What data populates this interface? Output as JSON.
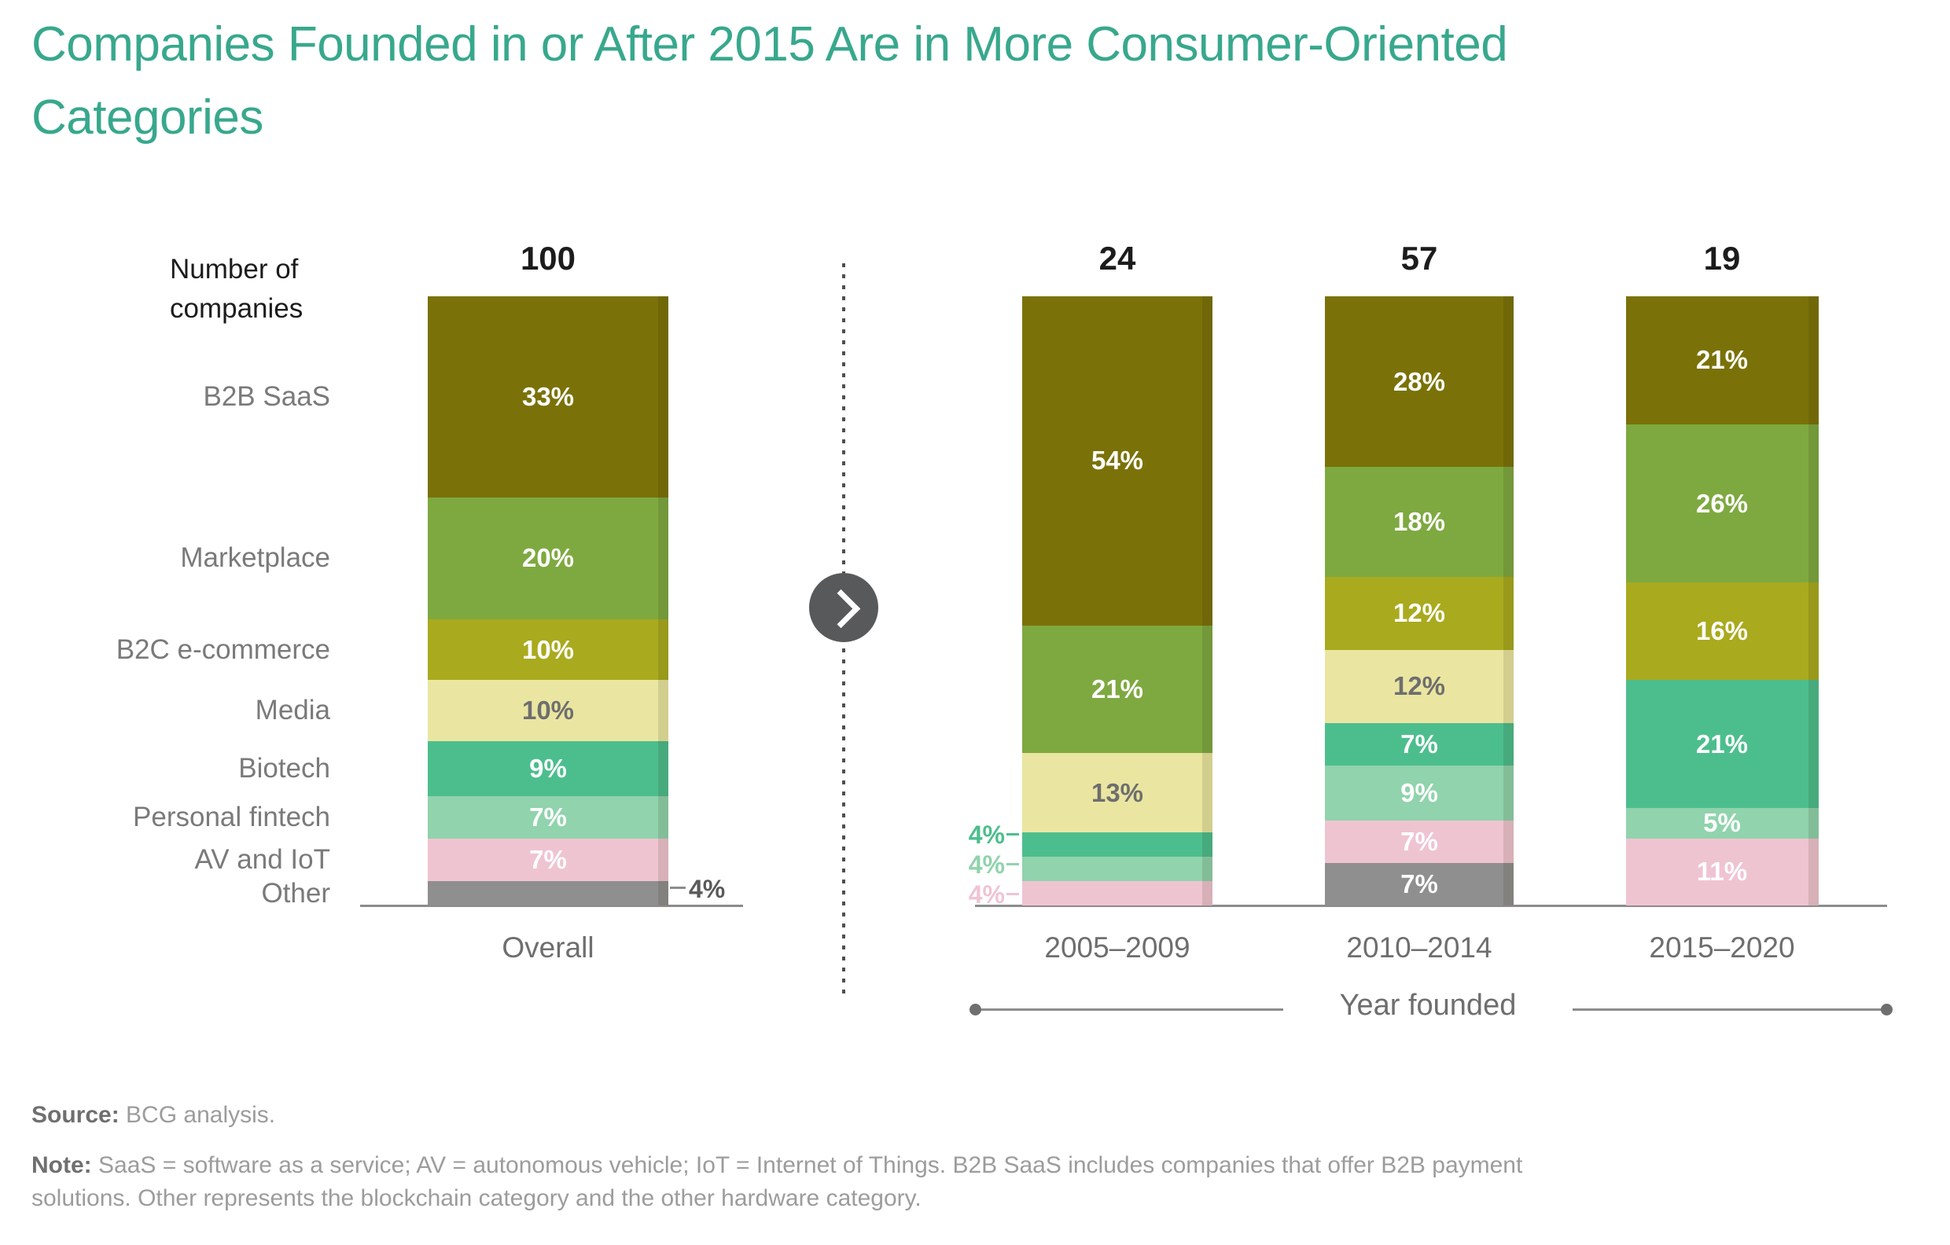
{
  "title": "Companies Founded in or After 2015 Are in More Consumer-Oriented Categories",
  "y_axis_note": [
    "Number of",
    "companies"
  ],
  "colors": {
    "B2B SaaS": "#7A7208",
    "Marketplace": "#7EA940",
    "B2C e-commerce": "#A9AA1E",
    "Media": "#EAE6A1",
    "Biotech": "#4CBE8D",
    "Personal fintech": "#90D3AC",
    "AV and IoT": "#EFC4D1",
    "Other": "#8F8F8F"
  },
  "chart_data": {
    "type": "bar",
    "stacked": true,
    "value_unit": "%",
    "x_axis_title": "Year founded",
    "categories_legend": [
      "B2B SaaS",
      "Marketplace",
      "B2C e-commerce",
      "Media",
      "Biotech",
      "Personal fintech",
      "AV and IoT",
      "Other"
    ],
    "columns": [
      {
        "id": "overall",
        "x_label": "Overall",
        "total": "100",
        "segments": [
          {
            "category": "B2B SaaS",
            "value": 33,
            "label": "33%"
          },
          {
            "category": "Marketplace",
            "value": 20,
            "label": "20%"
          },
          {
            "category": "B2C e-commerce",
            "value": 10,
            "label": "10%"
          },
          {
            "category": "Media",
            "value": 10,
            "label": "10%",
            "label_style": "dark"
          },
          {
            "category": "Biotech",
            "value": 9,
            "label": "9%"
          },
          {
            "category": "Personal fintech",
            "value": 7,
            "label": "7%"
          },
          {
            "category": "AV and IoT",
            "value": 7,
            "label": "7%"
          },
          {
            "category": "Other",
            "value": 4,
            "label": "4%",
            "label_position": "outside-right",
            "label_color": "#5A5A5A"
          }
        ]
      },
      {
        "id": "y2005",
        "x_label": "2005–2009",
        "total": "24",
        "segments": [
          {
            "category": "B2B SaaS",
            "value": 54,
            "label": "54%"
          },
          {
            "category": "Marketplace",
            "value": 21,
            "label": "21%"
          },
          {
            "category": "Media",
            "value": 13,
            "label": "13%",
            "label_style": "dark"
          },
          {
            "category": "Biotech",
            "value": 4,
            "label": "4%",
            "label_position": "outside-left"
          },
          {
            "category": "Personal fintech",
            "value": 4,
            "label": "4%",
            "label_position": "outside-left"
          },
          {
            "category": "AV and IoT",
            "value": 4,
            "label": "4%",
            "label_position": "outside-left"
          }
        ]
      },
      {
        "id": "y2010",
        "x_label": "2010–2014",
        "total": "57",
        "segments": [
          {
            "category": "B2B SaaS",
            "value": 28,
            "label": "28%"
          },
          {
            "category": "Marketplace",
            "value": 18,
            "label": "18%"
          },
          {
            "category": "B2C e-commerce",
            "value": 12,
            "label": "12%"
          },
          {
            "category": "Media",
            "value": 12,
            "label": "12%",
            "label_style": "dark"
          },
          {
            "category": "Biotech",
            "value": 7,
            "label": "7%"
          },
          {
            "category": "Personal fintech",
            "value": 9,
            "label": "9%"
          },
          {
            "category": "AV and IoT",
            "value": 7,
            "label": "7%"
          },
          {
            "category": "Other",
            "value": 7,
            "label": "7%"
          }
        ]
      },
      {
        "id": "y2015",
        "x_label": "2015–2020",
        "total": "19",
        "segments": [
          {
            "category": "B2B SaaS",
            "value": 21,
            "label": "21%"
          },
          {
            "category": "Marketplace",
            "value": 26,
            "label": "26%"
          },
          {
            "category": "B2C e-commerce",
            "value": 16,
            "label": "16%"
          },
          {
            "category": "Biotech",
            "value": 21,
            "label": "21%"
          },
          {
            "category": "Personal fintech",
            "value": 5,
            "label": "5%"
          },
          {
            "category": "AV and IoT",
            "value": 11,
            "label": "11%"
          }
        ]
      }
    ]
  },
  "footer": {
    "source_label": "Source:",
    "source_text": "BCG analysis.",
    "note_label": "Note:",
    "note_line1": "SaaS = software as a service; AV = autonomous vehicle; IoT = Internet of Things. B2B SaaS includes companies that offer B2B payment",
    "note_line2": "solutions. Other represents the blockchain category and the other hardware category."
  }
}
